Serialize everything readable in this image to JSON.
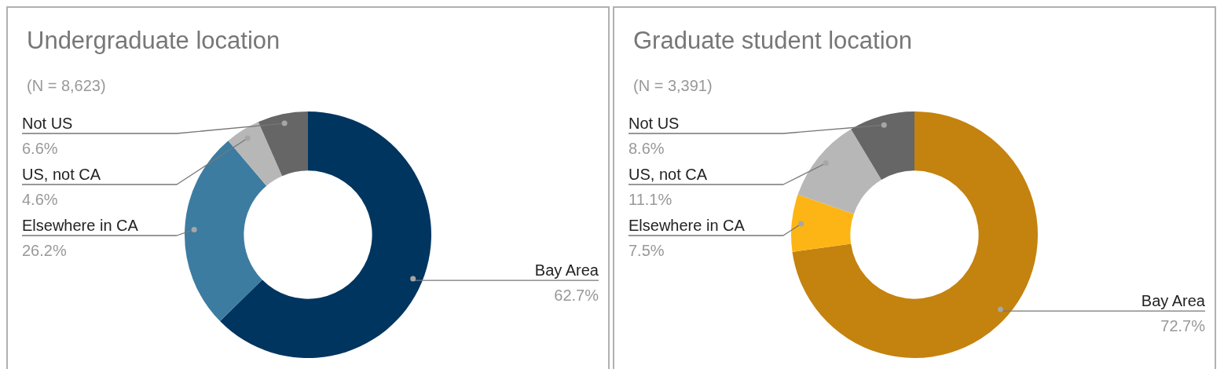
{
  "chart_data": [
    {
      "type": "donut",
      "title": "Undergraduate location",
      "subtitle": "(N = 8,623)",
      "categories": [
        "Bay Area",
        "Elsewhere in CA",
        "US, not CA",
        "Not US"
      ],
      "values": [
        62.7,
        26.2,
        4.6,
        6.6
      ],
      "colors": [
        "#003560",
        "#3d7ca1",
        "#b7b7b7",
        "#666666"
      ],
      "value_labels": [
        "62.7%",
        "26.2%",
        "4.6%",
        "6.6%"
      ],
      "legend": false
    },
    {
      "type": "donut",
      "title": "Graduate student location",
      "subtitle": "(N = 3,391)",
      "categories": [
        "Bay Area",
        "Elsewhere in CA",
        "US, not CA",
        "Not US"
      ],
      "values": [
        72.7,
        7.5,
        11.1,
        8.6
      ],
      "colors": [
        "#c4820e",
        "#fdb515",
        "#b7b7b7",
        "#666666"
      ],
      "value_labels": [
        "72.7%",
        "7.5%",
        "11.1%",
        "8.6%"
      ],
      "legend": false
    }
  ]
}
